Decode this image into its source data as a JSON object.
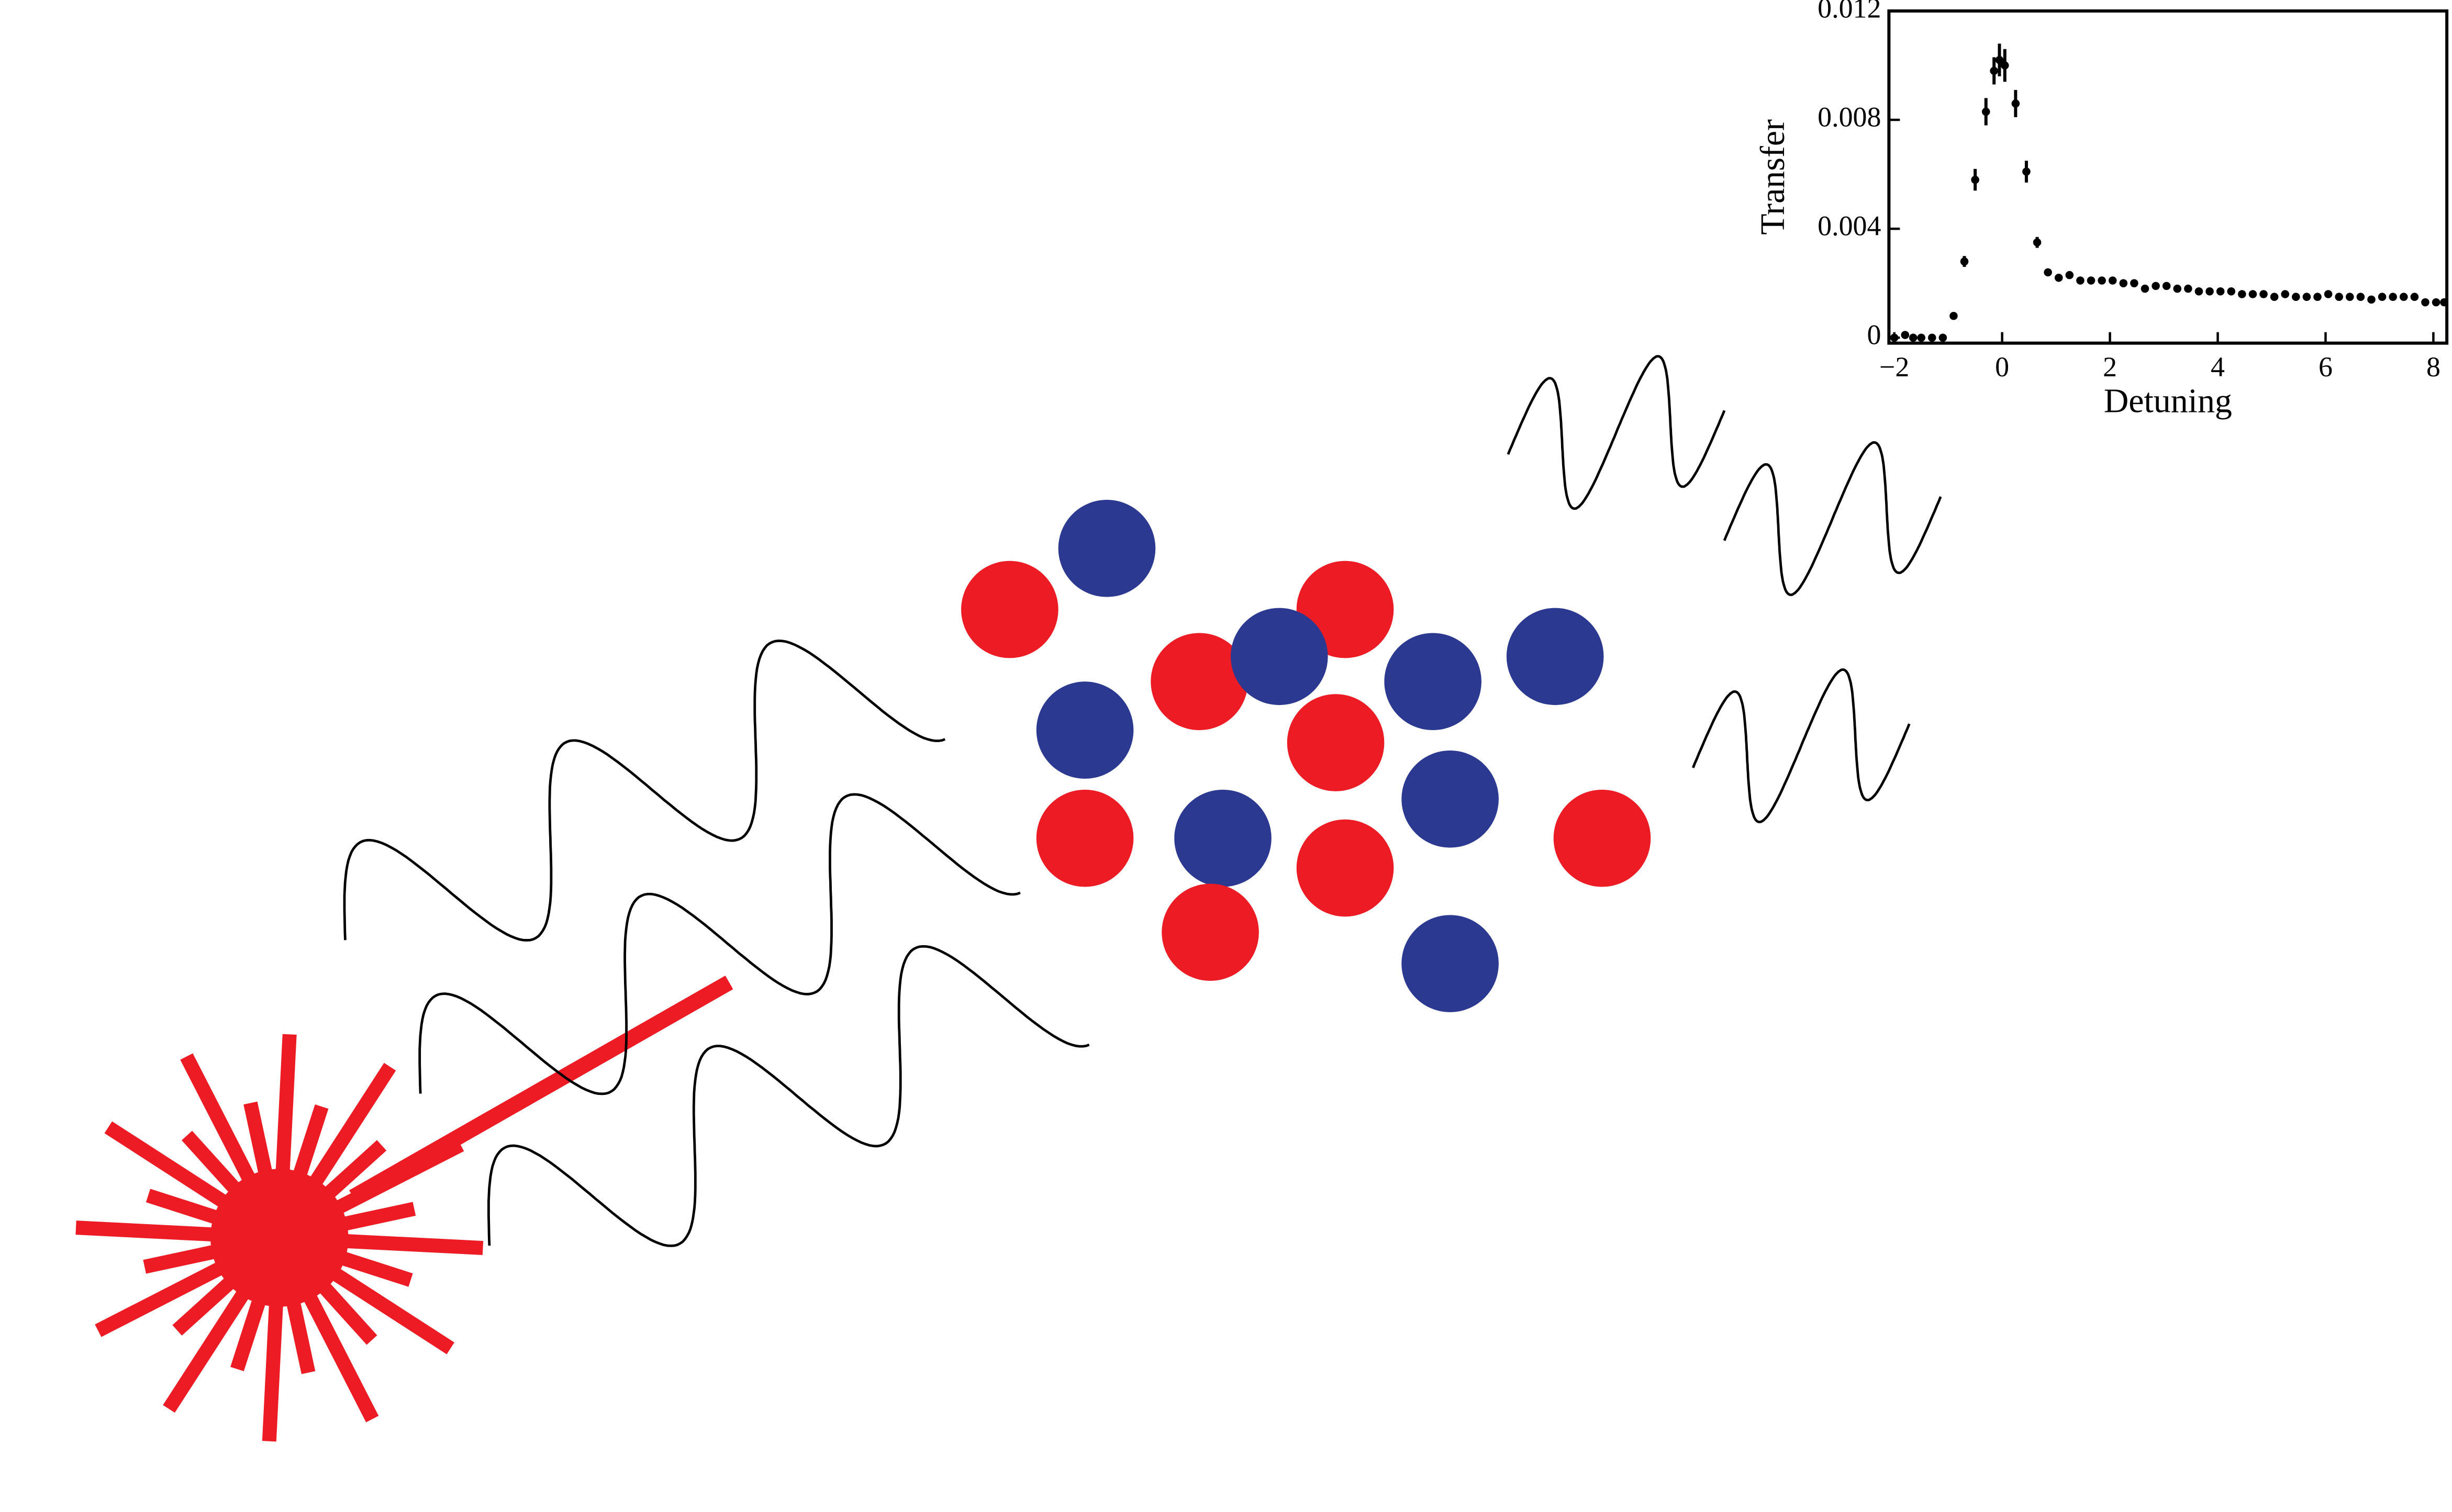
{
  "chart_data": {
    "type": "scatter",
    "x_label": "Detuning",
    "y_label": "Transfer",
    "x": [
      -2.0,
      -1.8,
      -1.65,
      -1.5,
      -1.3,
      -1.1,
      -0.9,
      -0.7,
      -0.5,
      -0.3,
      -0.15,
      -0.05,
      0.05,
      0.25,
      0.45,
      0.65,
      0.85,
      1.05,
      1.25,
      1.45,
      1.65,
      1.85,
      2.05,
      2.25,
      2.45,
      2.65,
      2.85,
      3.05,
      3.25,
      3.45,
      3.65,
      3.85,
      4.05,
      4.25,
      4.45,
      4.65,
      4.85,
      5.05,
      5.25,
      5.45,
      5.65,
      5.85,
      6.05,
      6.25,
      6.45,
      6.65,
      6.85,
      7.05,
      7.25,
      7.45,
      7.65,
      7.85,
      8.05,
      8.2
    ],
    "values": [
      0,
      0.0001,
      0,
      0,
      0,
      0,
      0.0008,
      0.0028,
      0.0058,
      0.0083,
      0.0098,
      0.0102,
      0.01,
      0.0086,
      0.0061,
      0.0035,
      0.0024,
      0.0022,
      0.0023,
      0.0021,
      0.0021,
      0.0021,
      0.0021,
      0.002,
      0.002,
      0.0018,
      0.0019,
      0.0019,
      0.0018,
      0.0018,
      0.0017,
      0.0017,
      0.0017,
      0.0017,
      0.0016,
      0.0016,
      0.0016,
      0.0015,
      0.0016,
      0.0015,
      0.0015,
      0.0015,
      0.0016,
      0.0015,
      0.0015,
      0.0015,
      0.0014,
      0.0015,
      0.0015,
      0.0015,
      0.0015,
      0.0013,
      0.0013,
      0.0013
    ],
    "errors": [
      0.0001,
      0.0001,
      0.0001,
      0.0001,
      0.0001,
      0.0001,
      0.0001,
      0.0002,
      0.0004,
      0.0005,
      0.0005,
      0.0006,
      0.0006,
      0.0005,
      0.0004,
      0.0002,
      0.0001,
      0.0001,
      0.0001,
      0.0001,
      0.0001,
      0.0001,
      0.0001,
      0.0001,
      0.0001,
      0.0001,
      0.0001,
      0.0001,
      0.0001,
      0.0001,
      0.0001,
      0.0001,
      0.0001,
      0.0001,
      0.0001,
      0.0001,
      0.0001,
      0.0001,
      0.0001,
      0.0001,
      0.0001,
      0.0001,
      0.0001,
      0.0001,
      0.0001,
      0.0001,
      0.0001,
      0.0001,
      0.0001,
      0.0001,
      0.0001,
      0.0001,
      0.0001,
      0.0001
    ],
    "color": "#000000",
    "xlim": [
      -2.1,
      8.25
    ],
    "ylim": [
      -0.0002,
      0.012
    ],
    "xticks": [
      {
        "value": -2,
        "label": "−2"
      },
      0,
      2,
      4,
      6,
      8
    ],
    "yticks": [
      0,
      0.004,
      0.008,
      0.012
    ]
  }
}
